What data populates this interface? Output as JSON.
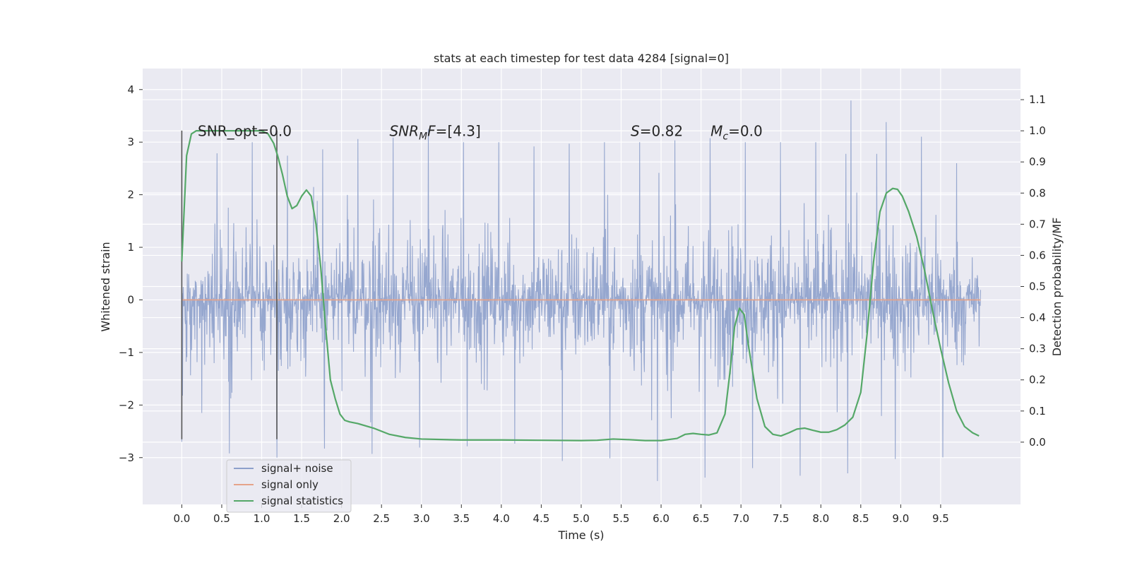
{
  "chart_data": {
    "type": "line",
    "title": "stats at each timestep for test data 4284 [signal=0]",
    "xlabel": "Time (s)",
    "ylabel": "Whitened strain",
    "y2label": "Detection probability/MF",
    "xlim": [
      -0.49,
      10.5
    ],
    "ylim": [
      -3.89,
      4.4
    ],
    "y2lim": [
      -0.2,
      1.2
    ],
    "xticks": [
      0.0,
      0.5,
      1.0,
      1.5,
      2.0,
      2.5,
      3.0,
      3.5,
      4.0,
      4.5,
      5.0,
      5.5,
      6.0,
      6.5,
      7.0,
      7.5,
      8.0,
      8.5,
      9.0,
      9.5
    ],
    "xtick_labels": [
      "0.0",
      "0.5",
      "1.0",
      "1.5",
      "2.0",
      "2.5",
      "3.0",
      "3.5",
      "4.0",
      "4.5",
      "5.0",
      "5.5",
      "6.0",
      "6.5",
      "7.0",
      "7.5",
      "8.0",
      "8.5",
      "9.0",
      "9.5"
    ],
    "yticks": [
      4,
      3,
      2,
      1,
      0,
      -1,
      -2,
      -3
    ],
    "ytick_labels": [
      "4",
      "3",
      "2",
      "1",
      "0",
      "−1",
      "−2",
      "−3"
    ],
    "y2ticks": [
      1.1,
      1.0,
      0.9,
      0.8,
      0.7,
      0.6,
      0.5,
      0.4,
      0.3,
      0.2,
      0.1,
      0.0
    ],
    "y2tick_labels": [
      "1.1",
      "1.0",
      "0.9",
      "0.8",
      "0.7",
      "0.6",
      "0.5",
      "0.4",
      "0.3",
      "0.2",
      "0.1",
      "0.0"
    ],
    "grid": true,
    "legend_position": "lower-left",
    "series": [
      {
        "name": "signal+ noise",
        "axis": "left",
        "color": "#8da0cb",
        "x_range": [
          0.0,
          10.0
        ],
        "envelope": {
          "x": [
            0.0,
            0.5,
            1.0,
            1.5,
            2.0,
            2.5,
            3.0,
            3.5,
            4.0,
            4.5,
            5.0,
            5.5,
            6.0,
            6.5,
            7.0,
            7.5,
            8.0,
            8.5,
            9.0,
            9.5,
            10.0
          ],
          "upper": [
            1.2,
            3.0,
            3.0,
            2.6,
            3.1,
            3.0,
            3.3,
            3.0,
            3.0,
            2.9,
            3.0,
            3.0,
            3.0,
            3.1,
            3.0,
            3.0,
            3.0,
            4.05,
            3.0,
            3.2,
            1.7
          ],
          "lower": [
            -2.7,
            -2.9,
            -3.0,
            -3.0,
            -2.7,
            -3.0,
            -2.8,
            -2.8,
            -2.7,
            -2.8,
            -3.3,
            -2.9,
            -3.5,
            -3.4,
            -3.2,
            -3.2,
            -3.5,
            -3.2,
            -3.0,
            -3.0,
            -2.9
          ]
        }
      },
      {
        "name": "signal only",
        "axis": "left",
        "color": "#e5a38a",
        "x": [
          0.0,
          10.0
        ],
        "y": [
          0.0,
          0.0
        ]
      },
      {
        "name": "signal statistics",
        "axis": "right",
        "color": "#55a868",
        "x": [
          0.0,
          0.06,
          0.12,
          0.18,
          0.3,
          0.5,
          0.7,
          0.9,
          1.0,
          1.08,
          1.15,
          1.2,
          1.26,
          1.32,
          1.38,
          1.44,
          1.5,
          1.56,
          1.62,
          1.68,
          1.74,
          1.8,
          1.86,
          1.92,
          1.98,
          2.04,
          2.1,
          2.2,
          2.4,
          2.6,
          2.8,
          3.0,
          3.5,
          4.0,
          4.5,
          5.0,
          5.2,
          5.4,
          5.6,
          5.8,
          6.0,
          6.2,
          6.3,
          6.4,
          6.5,
          6.6,
          6.7,
          6.8,
          6.86,
          6.92,
          6.98,
          7.04,
          7.1,
          7.2,
          7.3,
          7.4,
          7.5,
          7.6,
          7.7,
          7.8,
          7.9,
          8.0,
          8.1,
          8.2,
          8.3,
          8.4,
          8.5,
          8.58,
          8.66,
          8.74,
          8.82,
          8.9,
          8.96,
          9.02,
          9.1,
          9.2,
          9.3,
          9.4,
          9.5,
          9.6,
          9.7,
          9.8,
          9.9,
          9.98
        ],
        "y": [
          0.58,
          0.92,
          0.99,
          1.0,
          1.0,
          1.0,
          1.0,
          1.0,
          1.0,
          0.99,
          0.96,
          0.92,
          0.86,
          0.79,
          0.75,
          0.76,
          0.79,
          0.81,
          0.79,
          0.7,
          0.56,
          0.37,
          0.2,
          0.14,
          0.09,
          0.07,
          0.065,
          0.06,
          0.045,
          0.025,
          0.015,
          0.01,
          0.007,
          0.007,
          0.006,
          0.005,
          0.006,
          0.01,
          0.008,
          0.005,
          0.005,
          0.012,
          0.025,
          0.028,
          0.025,
          0.023,
          0.03,
          0.09,
          0.22,
          0.37,
          0.43,
          0.41,
          0.3,
          0.14,
          0.05,
          0.025,
          0.02,
          0.03,
          0.042,
          0.045,
          0.038,
          0.032,
          0.032,
          0.04,
          0.055,
          0.08,
          0.16,
          0.35,
          0.58,
          0.74,
          0.8,
          0.815,
          0.812,
          0.79,
          0.74,
          0.66,
          0.55,
          0.42,
          0.3,
          0.19,
          0.1,
          0.05,
          0.03,
          0.02
        ]
      }
    ],
    "vertical_markers": [
      {
        "x": 0.0,
        "y": [
          -2.65,
          3.22
        ]
      },
      {
        "x": 1.19,
        "y": [
          -2.65,
          3.22
        ]
      }
    ],
    "annotations": [
      {
        "text": "SNR_opt=0.0",
        "x": 0.2,
        "y": 3.12
      },
      {
        "text_main": "SNR",
        "text_sub": "M",
        "text_tail": "F=[4.3]",
        "x": 2.6,
        "y": 3.12
      },
      {
        "text": "S=0.82",
        "x": 5.62,
        "y": 3.12
      },
      {
        "text_main": "M",
        "text_sub": "c",
        "text_tail": "=0.0",
        "x": 6.62,
        "y": 3.12
      }
    ]
  },
  "colors": {
    "plot_bg": "#eaeaf2",
    "grid": "#ffffff",
    "marker_line": "#555555"
  }
}
